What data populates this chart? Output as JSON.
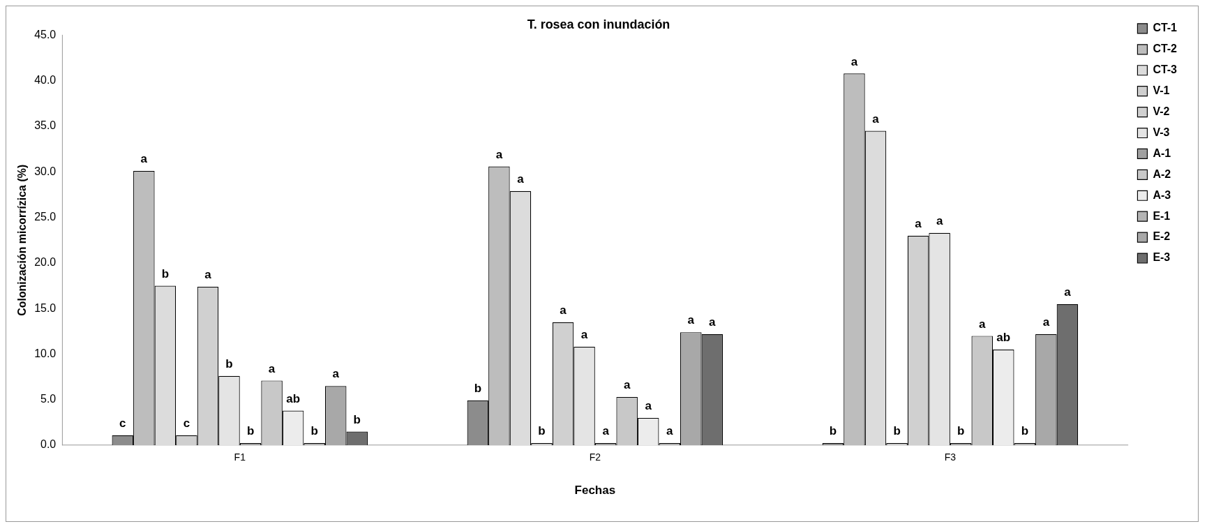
{
  "chart_data": {
    "type": "bar",
    "title": "T. rosea con inundación",
    "xlabel": "Fechas",
    "ylabel": "Colonización micorrízica (%)",
    "categories": [
      "F1",
      "F2",
      "F3"
    ],
    "ylim": [
      0,
      45
    ],
    "yticks": [
      {
        "value": 0,
        "label": "0.0"
      },
      {
        "value": 5,
        "label": "5.0"
      },
      {
        "value": 10,
        "label": "10.0"
      },
      {
        "value": 15,
        "label": "15.0"
      },
      {
        "value": 20,
        "label": "20.0"
      },
      {
        "value": 25,
        "label": "25.0"
      },
      {
        "value": 30,
        "label": "30.0"
      },
      {
        "value": 35,
        "label": "35.0"
      },
      {
        "value": 40,
        "label": "40.0"
      },
      {
        "value": 45,
        "label": "45.0"
      }
    ],
    "grid": false,
    "legend": "top right",
    "series": [
      {
        "name": "CT-1",
        "color": "#8c8c8c",
        "values": [
          1.1,
          4.9,
          0
        ],
        "value_labels": [
          "c",
          "b",
          "b"
        ]
      },
      {
        "name": "CT-2",
        "color": "#bdbdbd",
        "values": [
          30.1,
          30.6,
          40.8
        ],
        "value_labels": [
          "a",
          "a",
          "a"
        ]
      },
      {
        "name": "CT-3",
        "color": "#dcdcdc",
        "values": [
          17.5,
          27.9,
          34.5
        ],
        "value_labels": [
          "b",
          "a",
          "a"
        ]
      },
      {
        "name": "V-1",
        "color": "#cfcfcf",
        "values": [
          1.1,
          0,
          0
        ],
        "value_labels": [
          "c",
          "b",
          "b"
        ]
      },
      {
        "name": "V-2",
        "color": "#d0d0d0",
        "values": [
          17.4,
          13.5,
          23.0
        ],
        "value_labels": [
          "a",
          "a",
          "a"
        ]
      },
      {
        "name": "V-3",
        "color": "#e4e4e4",
        "values": [
          7.6,
          10.8,
          23.3
        ],
        "value_labels": [
          "b",
          "a",
          "a"
        ]
      },
      {
        "name": "A-1",
        "color": "#a0a0a0",
        "values": [
          0,
          0,
          0
        ],
        "value_labels": [
          "b",
          "a",
          "b"
        ]
      },
      {
        "name": "A-2",
        "color": "#c8c8c8",
        "values": [
          7.1,
          5.3,
          12.0
        ],
        "value_labels": [
          "a",
          "a",
          "a"
        ]
      },
      {
        "name": "A-3",
        "color": "#ececec",
        "values": [
          3.8,
          3.0,
          10.5
        ],
        "value_labels": [
          "ab",
          "a",
          "ab"
        ]
      },
      {
        "name": "E-1",
        "color": "#b4b4b4",
        "values": [
          0,
          0,
          0
        ],
        "value_labels": [
          "b",
          "a",
          "b"
        ]
      },
      {
        "name": "E-2",
        "color": "#a8a8a8",
        "values": [
          6.5,
          12.4,
          12.2
        ],
        "value_labels": [
          "a",
          "a",
          "a"
        ]
      },
      {
        "name": "E-3",
        "color": "#6e6e6e",
        "values": [
          1.5,
          12.2,
          15.5
        ],
        "value_labels": [
          "b",
          "a",
          "a"
        ]
      }
    ]
  }
}
